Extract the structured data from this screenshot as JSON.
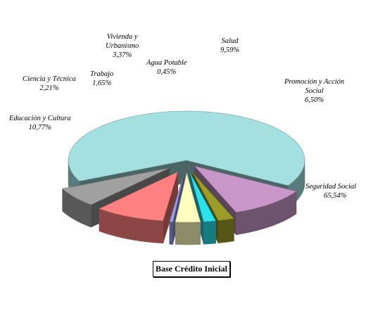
{
  "chart_data": {
    "type": "pie",
    "variant": "3d-exploded",
    "title": "Base Crédito Inicial",
    "slices": [
      {
        "name": "Seguridad Social",
        "value": 65.54,
        "label": "65,54%",
        "color": "#a4e0e0"
      },
      {
        "name": "Educación y Cultura",
        "value": 10.77,
        "label": "10,77%",
        "color": "#c896c8"
      },
      {
        "name": "Ciencia y Técnica",
        "value": 2.21,
        "label": "2,21%",
        "color": "#9c9c28"
      },
      {
        "name": "Trabajo",
        "value": 1.65,
        "label": "1,65%",
        "color": "#2ce0ec"
      },
      {
        "name": "Vivienda y Urbanismo",
        "value": 3.37,
        "label": "3,37%",
        "color": "#fdfdbe"
      },
      {
        "name": "Agua Potable",
        "value": 0.45,
        "label": "0,45%",
        "color": "#9ca0e8"
      },
      {
        "name": "Salud",
        "value": 9.59,
        "label": "9,59%",
        "color": "#ff8080"
      },
      {
        "name": "Promoción y Acción Social",
        "value": 6.5,
        "label": "6,50%",
        "color": "#a0a0a0"
      }
    ]
  }
}
